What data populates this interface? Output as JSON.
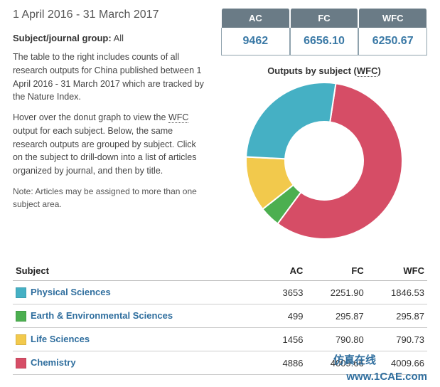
{
  "header": {
    "date_range": "1 April 2016 - 31 March 2017",
    "subject_label": "Subject/journal group:",
    "subject_value": "All",
    "para1": "The table to the right includes counts of all research outputs for China published between 1 April 2016 - 31 March 2017 which are tracked by the Nature Index.",
    "para2_a": "Hover over the donut graph to view the ",
    "para2_wfc": "WFC",
    "para2_b": " output for each subject. Below, the same research outputs are grouped by subject. Click on the subject to drill-down into a list of articles organized by journal, and then by title.",
    "note": "Note: Articles may be assigned to more than one subject area."
  },
  "metrics": {
    "ac_label": "AC",
    "fc_label": "FC",
    "wfc_label": "WFC",
    "ac_value": "9462",
    "fc_value": "6656.10",
    "wfc_value": "6250.67"
  },
  "chart": {
    "title_a": "Outputs by subject (",
    "title_wfc": "WFC",
    "title_b": ")",
    "type": "donut",
    "inner_radius": 55,
    "outer_radius": 110,
    "background": "#ffffff",
    "slices": [
      {
        "label": "Chemistry",
        "value": 4009.66,
        "color": "#d64d66"
      },
      {
        "label": "Earth & Environmental Sciences",
        "value": 295.87,
        "color": "#4caf50"
      },
      {
        "label": "Life Sciences",
        "value": 790.73,
        "color": "#f2c94c"
      },
      {
        "label": "Physical Sciences",
        "value": 1846.53,
        "color": "#45b0c4"
      }
    ]
  },
  "table": {
    "headers": {
      "subject": "Subject",
      "ac": "AC",
      "fc": "FC",
      "wfc": "WFC"
    },
    "rows": [
      {
        "color": "#45b0c4",
        "name": "Physical Sciences",
        "ac": "3653",
        "fc": "2251.90",
        "wfc": "1846.53"
      },
      {
        "color": "#4caf50",
        "name": "Earth & Environmental Sciences",
        "ac": "499",
        "fc": "295.87",
        "wfc": "295.87"
      },
      {
        "color": "#f2c94c",
        "name": "Life Sciences",
        "ac": "1456",
        "fc": "790.80",
        "wfc": "790.73"
      },
      {
        "color": "#d64d66",
        "name": "Chemistry",
        "ac": "4886",
        "fc": "4009.66",
        "wfc": "4009.66"
      }
    ]
  },
  "watermarks": {
    "wm1": "",
    "wm2": "",
    "cn": "仿真在线",
    "site": "www.1CAE.com"
  }
}
